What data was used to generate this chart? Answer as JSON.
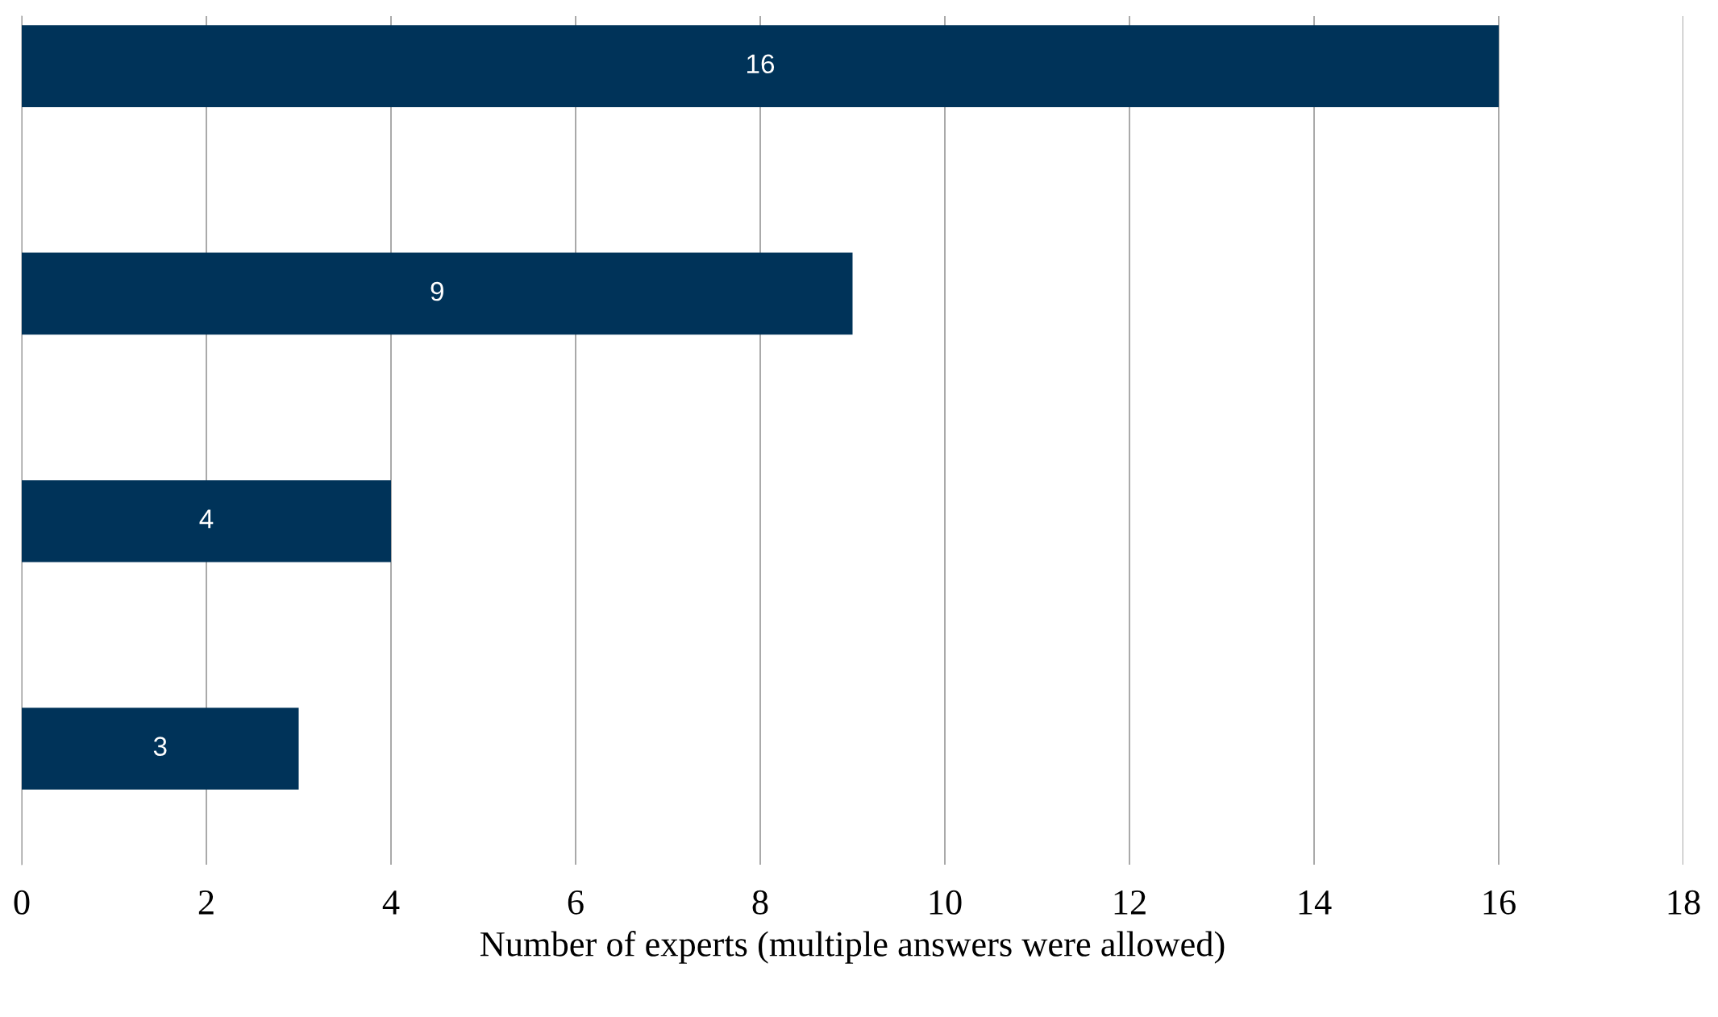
{
  "chart_data": {
    "type": "bar",
    "orientation": "horizontal",
    "categories": [
      null,
      null,
      null,
      null
    ],
    "values": [
      16,
      9,
      4,
      3
    ],
    "color": "#003359",
    "xlabel": "Number of experts (multiple answers were allowed)",
    "xlim": [
      0,
      18
    ],
    "xticks": [
      0,
      2,
      4,
      6,
      8,
      10,
      12,
      14,
      16,
      18
    ],
    "grid": "x",
    "data_labels": true
  }
}
